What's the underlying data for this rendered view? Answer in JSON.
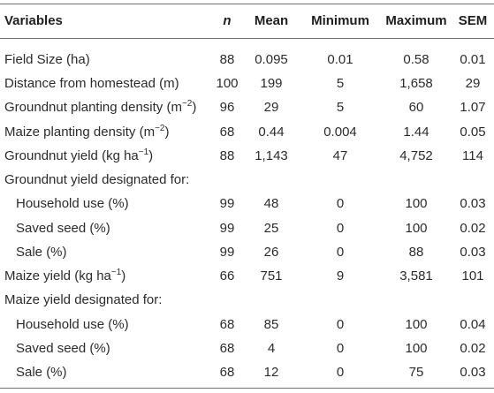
{
  "table": {
    "headers": [
      "Variables",
      "n",
      "Mean",
      "Minimum",
      "Maximum",
      "SEM"
    ],
    "rows": [
      {
        "label": "Field Size (ha)",
        "sup": "",
        "label_tail": "",
        "values": [
          "88",
          "0.095",
          "0.01",
          "0.58",
          "0.01"
        ]
      },
      {
        "label": "Distance from homestead (m)",
        "sup": "",
        "label_tail": "",
        "values": [
          "100",
          "199",
          "5",
          "1,658",
          "29"
        ]
      },
      {
        "label": "Groundnut planting density (m",
        "sup": "−2",
        "label_tail": ")",
        "values": [
          "96",
          "29",
          "5",
          "60",
          "1.07"
        ]
      },
      {
        "label": "Maize planting density (m",
        "sup": "−2",
        "label_tail": ")",
        "values": [
          "68",
          "0.44",
          "0.004",
          "1.44",
          "0.05"
        ]
      },
      {
        "label": "Groundnut yield (kg ha",
        "sup": "−1",
        "label_tail": ")",
        "values": [
          "88",
          "1,143",
          "47",
          "4,752",
          "114"
        ]
      },
      {
        "label": "Groundnut yield designated for:",
        "sup": "",
        "label_tail": "",
        "values": [
          "",
          "",
          "",
          "",
          ""
        ]
      },
      {
        "label": "Household use (%)",
        "sup": "",
        "label_tail": "",
        "values": [
          "99",
          "48",
          "0",
          "100",
          "0.03"
        ]
      },
      {
        "label": "Saved seed (%)",
        "sup": "",
        "label_tail": "",
        "values": [
          "99",
          "25",
          "0",
          "100",
          "0.02"
        ]
      },
      {
        "label": "Sale (%)",
        "sup": "",
        "label_tail": "",
        "values": [
          "99",
          "26",
          "0",
          "88",
          "0.03"
        ]
      },
      {
        "label": "Maize yield (kg ha",
        "sup": "−1",
        "label_tail": ")",
        "values": [
          "66",
          "751",
          "9",
          "3,581",
          "101"
        ]
      },
      {
        "label": "Maize yield designated for:",
        "sup": "",
        "label_tail": "",
        "values": [
          "",
          "",
          "",
          "",
          ""
        ]
      },
      {
        "label": "Household use (%)",
        "sup": "",
        "label_tail": "",
        "values": [
          "68",
          "85",
          "0",
          "100",
          "0.04"
        ]
      },
      {
        "label": "Saved seed (%)",
        "sup": "",
        "label_tail": "",
        "values": [
          "68",
          "4",
          "0",
          "100",
          "0.02"
        ]
      },
      {
        "label": "Sale (%)",
        "sup": "",
        "label_tail": "",
        "values": [
          "68",
          "12",
          "0",
          "75",
          "0.03"
        ]
      }
    ]
  }
}
